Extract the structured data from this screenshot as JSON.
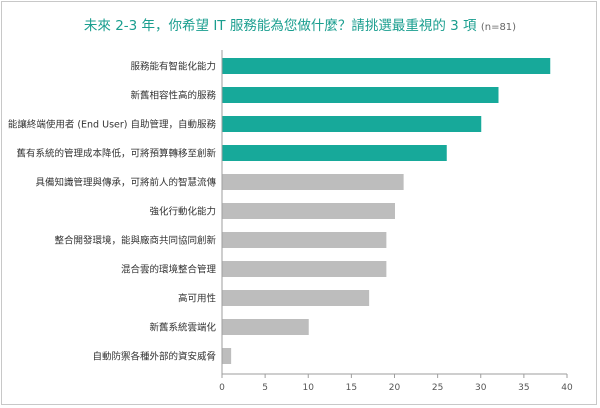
{
  "chart_data": {
    "type": "bar",
    "orientation": "horizontal",
    "title": "未來 2-3 年，你希望 IT 服務能為您做什麼？請挑選最重視的 3 項",
    "title_note": "(n=81)",
    "categories": [
      "服務能有智能化能力",
      "新舊相容性高的服務",
      "能讓終端使用者 (End User) 自助管理，自動服務",
      "舊有系統的管理成本降低，可將預算轉移至創新",
      "具備知識管理與傳承，可將前人的智慧流傳",
      "強化行動化能力",
      "整合開發環境，能與廠商共同協同創新",
      "混合雲的環境整合管理",
      "高可用性",
      "新舊系統雲端化",
      "自動防禦各種外部的資安威脅"
    ],
    "values": [
      38,
      32,
      30,
      26,
      21,
      20,
      19,
      19,
      17,
      10,
      1
    ],
    "highlight_count": 4,
    "xlim": [
      0,
      40
    ],
    "xticks": [
      0,
      5,
      10,
      15,
      20,
      25,
      30,
      35,
      40
    ],
    "grid": false,
    "colors": {
      "highlight": "#17a99a",
      "normal": "#bdbdbd",
      "title": "#1a9e8f",
      "axis": "#9e9e9e"
    }
  }
}
